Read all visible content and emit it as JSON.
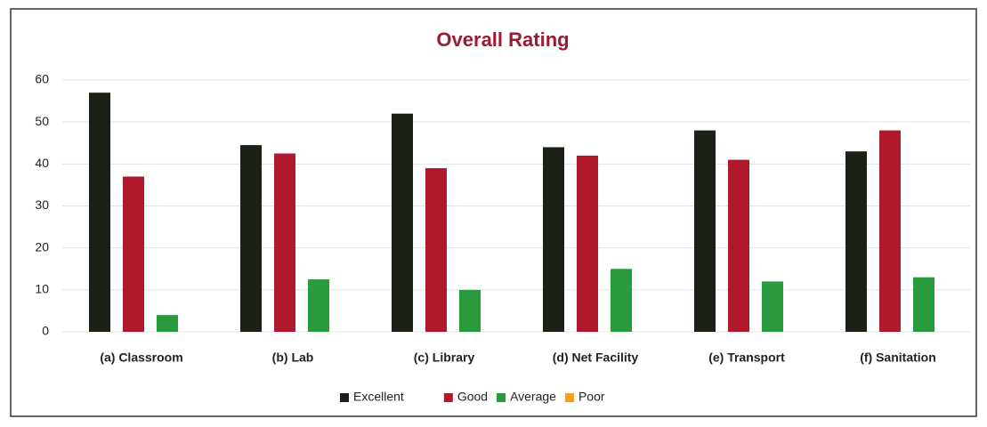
{
  "chart_data": {
    "type": "bar",
    "title": "Overall Rating",
    "categories": [
      "(a) Classroom",
      "(b) Lab",
      "(c) Library",
      "(d) Net Facility",
      "(e) Transport",
      "(f) Sanitation"
    ],
    "series": [
      {
        "name": "Excellent",
        "color": "#1c2118",
        "values": [
          57,
          44.5,
          52,
          44,
          48,
          43
        ]
      },
      {
        "name": "Good",
        "color": "#b0182c",
        "values": [
          37,
          42.5,
          39,
          42,
          41,
          48
        ]
      },
      {
        "name": "Average",
        "color": "#2a9a3e",
        "values": [
          4,
          12.5,
          10,
          15,
          12,
          13
        ]
      },
      {
        "name": "Poor",
        "color": "#f5a01a",
        "values": [
          0,
          0,
          0,
          0,
          0,
          0
        ]
      }
    ],
    "ylim": [
      0,
      60
    ],
    "yticks": [
      0,
      10,
      20,
      30,
      40,
      50,
      60
    ],
    "grid": true,
    "legend": "bottom"
  }
}
